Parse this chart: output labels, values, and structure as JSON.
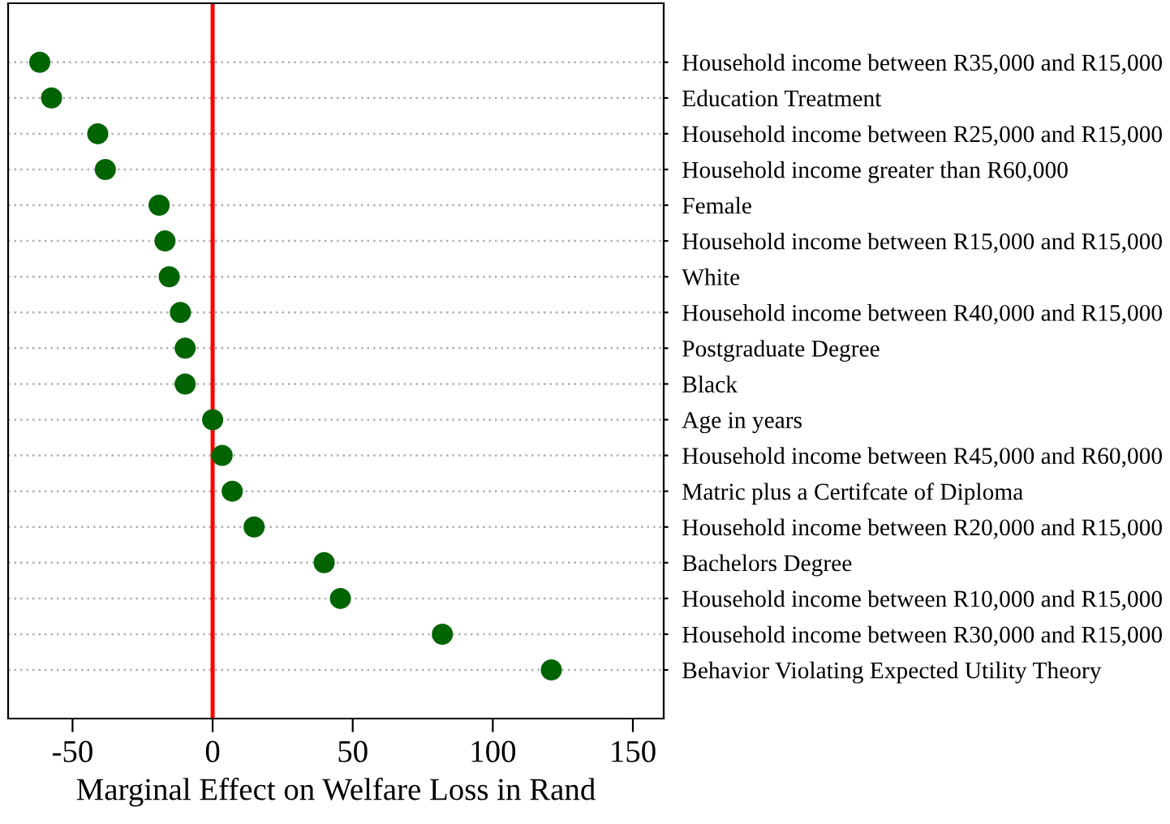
{
  "chart_data": {
    "type": "scatter",
    "orientation": "horizontal",
    "xlabel": "Marginal Effect on Welfare Loss in Rand",
    "categories": [
      "Household income between R35,000 and R15,000",
      "Education Treatment",
      "Household income between R25,000 and R15,000",
      "Household income greater than R60,000",
      "Female",
      "Household income between R15,000 and R15,000",
      "White",
      "Household income between R40,000 and R15,000",
      "Postgraduate Degree",
      "Black",
      "Age in years",
      "Household income between R45,000 and R60,000",
      "Matric plus a Certifcate of Diploma",
      "Household income between R20,000 and R15,000",
      "Bachelors Degree",
      "Household income between R10,000 and R15,000",
      "Household income between R30,000 and R15,000",
      "Behavior Violating Expected Utility Theory"
    ],
    "series": [
      {
        "color": "#006400",
        "values": [
          -61.7,
          -57.5,
          -41,
          -38.3,
          -19.1,
          -17,
          -15.5,
          -11.5,
          -9.8,
          -9.8,
          0,
          3.4,
          7,
          14.8,
          39.8,
          45.6,
          82,
          120.9
        ]
      }
    ],
    "xlim": [
      -73,
      161
    ],
    "xticks": [
      -50,
      0,
      50,
      100,
      150
    ],
    "ref_lines": [
      {
        "axis": "x",
        "value": 0,
        "color": "#ff0000"
      }
    ],
    "grid": "y",
    "marker": "circle",
    "legend": false
  }
}
